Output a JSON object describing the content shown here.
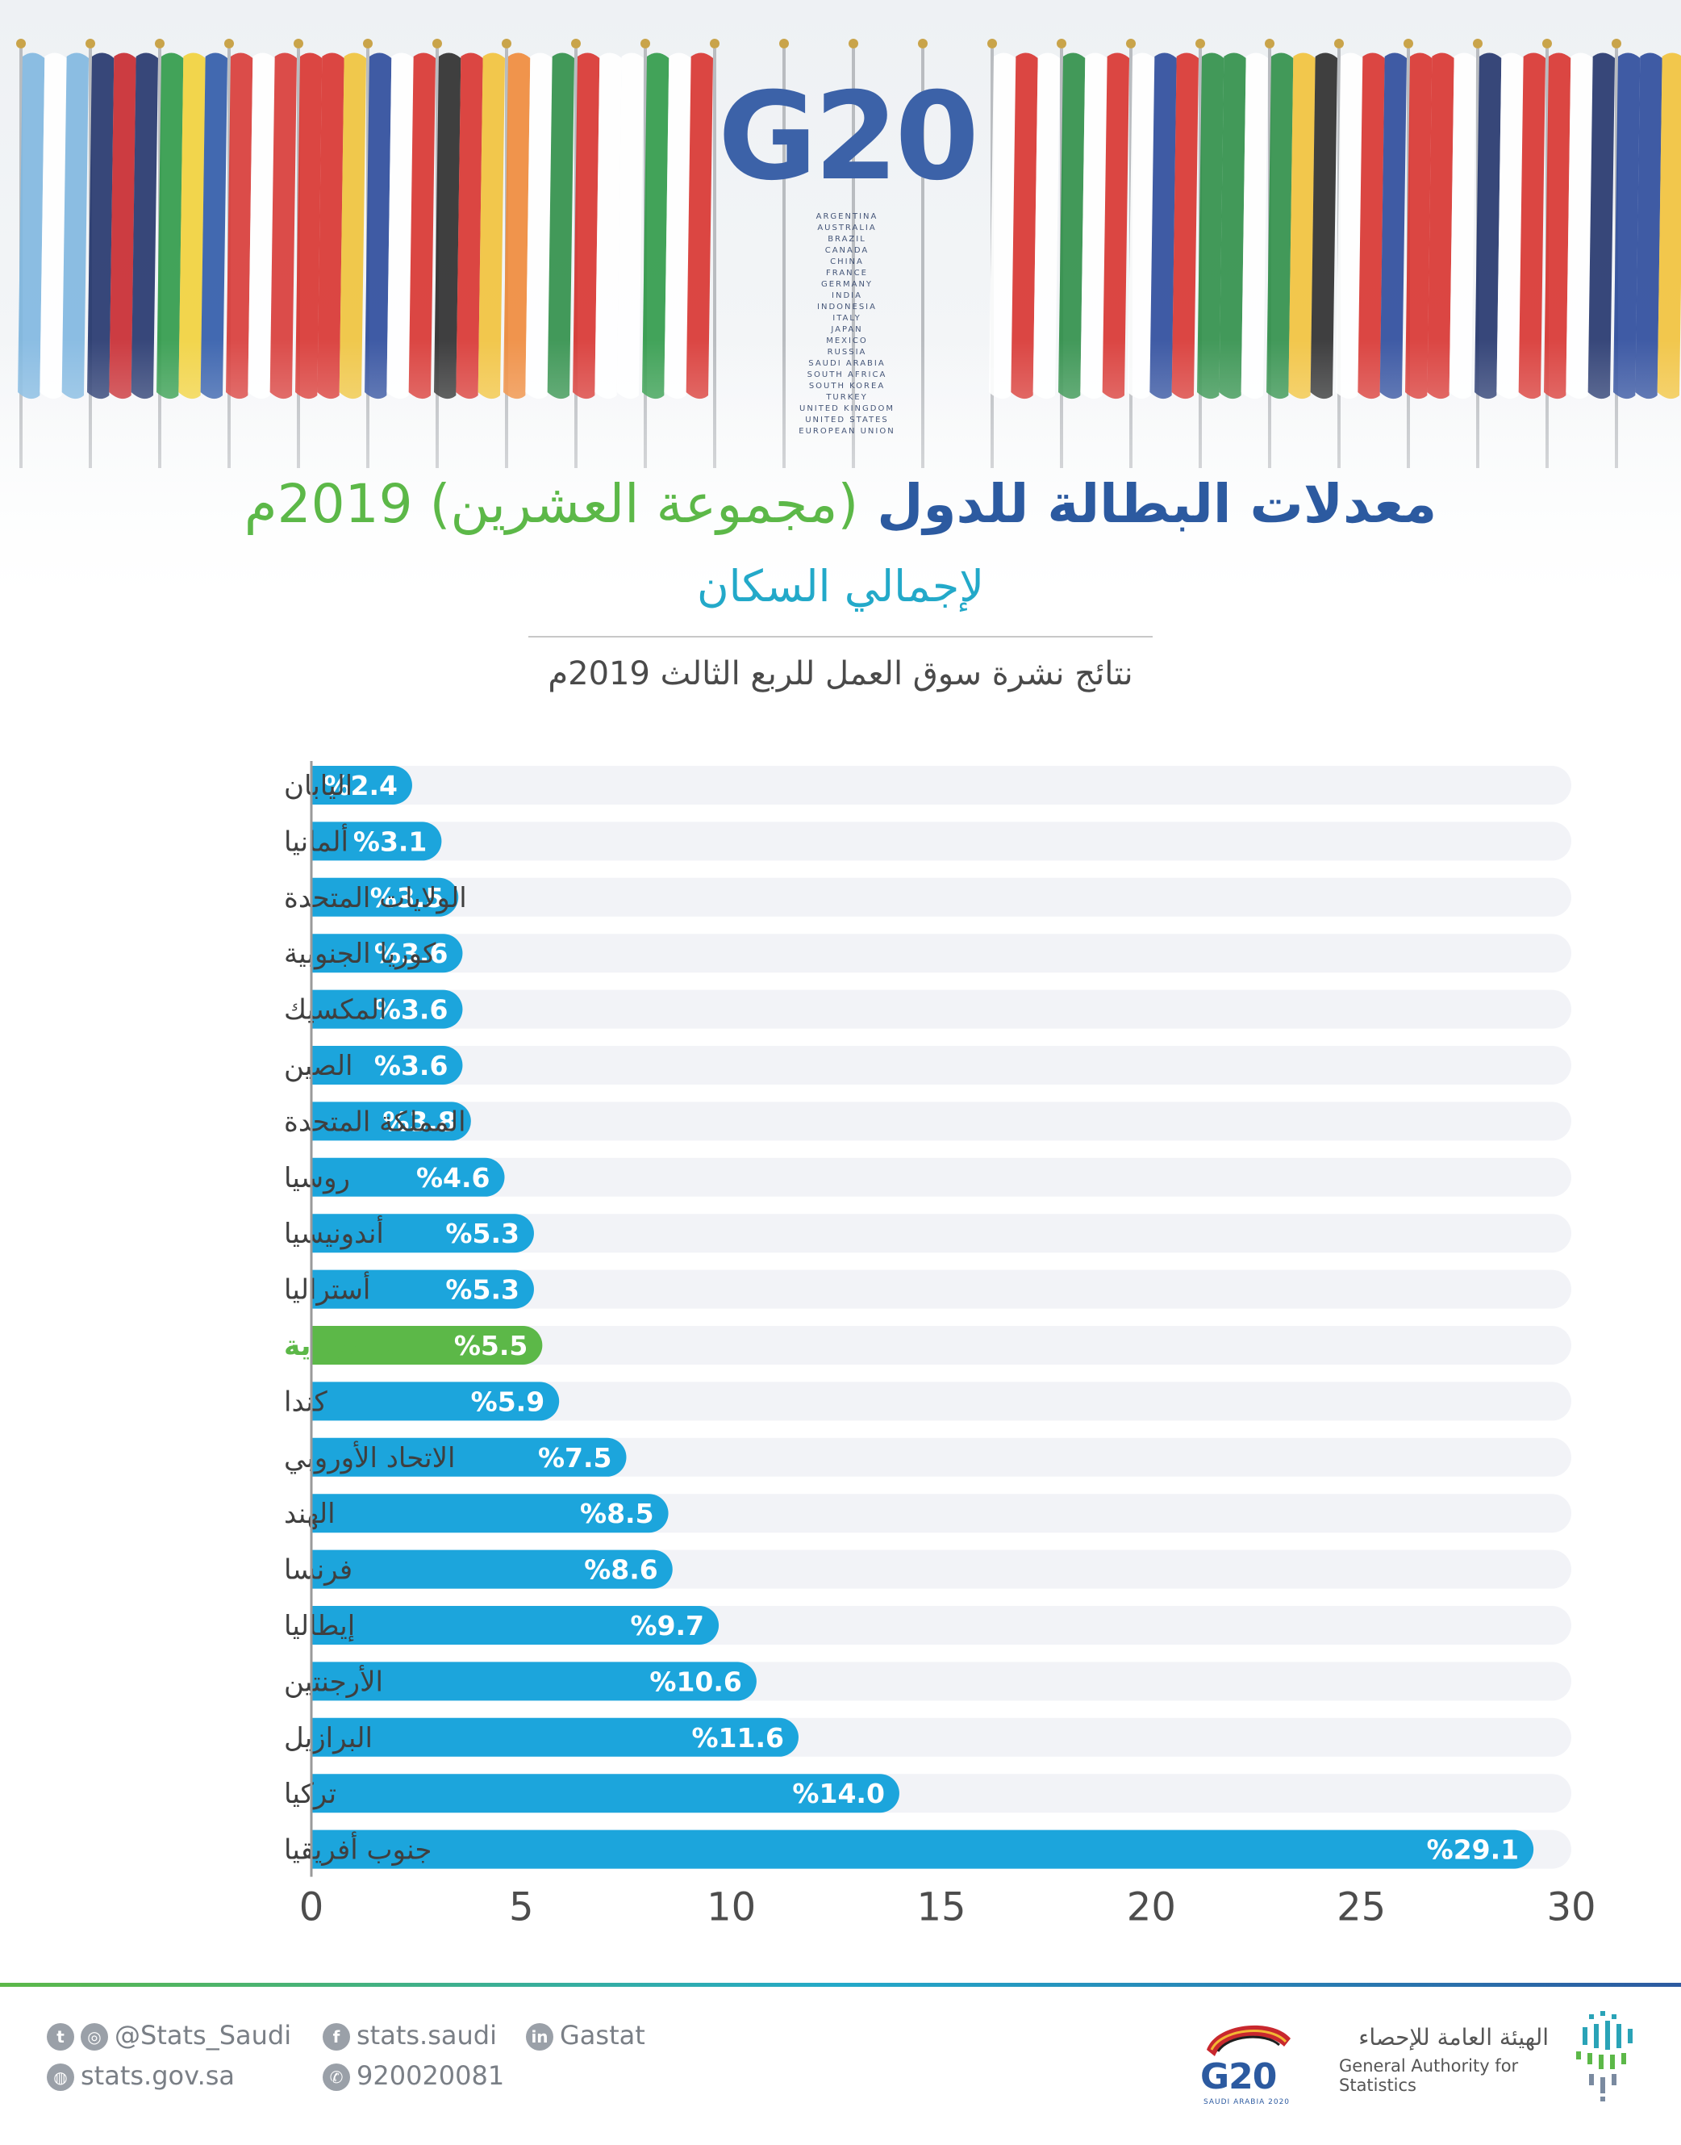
{
  "banner": {
    "logo_text": "G20",
    "countries": [
      "ARGENTINA",
      "AUSTRALIA",
      "BRAZIL",
      "CANADA",
      "CHINA",
      "FRANCE",
      "GERMANY",
      "INDIA",
      "INDONESIA",
      "ITALY",
      "JAPAN",
      "MEXICO",
      "RUSSIA",
      "SAUDI ARABIA",
      "SOUTH AFRICA",
      "SOUTH KOREA",
      "TURKEY",
      "UNITED KINGDOM",
      "UNITED STATES",
      "EUROPEAN UNION"
    ]
  },
  "title": {
    "main_part1": "معدلات البطالة للدول",
    "main_part2": "(مجموعة العشرين) 2019م",
    "subtitle": "لإجمالي السكان",
    "note": "نتائج نشرة سوق العمل للربع الثالث 2019م"
  },
  "colors": {
    "bar": "#1ca5dc",
    "highlight": "#5cb848",
    "track": "#f2f3f7",
    "title_blue": "#2c5aa0",
    "title_green": "#5cb848",
    "subtitle": "#23a9c9"
  },
  "chart_data": {
    "type": "bar",
    "orientation": "horizontal",
    "categories": [
      "اليابان",
      "ألمانيا",
      "الولايات المتحدة",
      "كوريا الجنوبية",
      "المكسيك",
      "الصين",
      "المملكة المتحدة",
      "روسيا",
      "أندونيسيا",
      "أستراليا",
      "السعودية",
      "كندا",
      "الاتحاد الأوروبي",
      "الهند",
      "فرنسا",
      "إيطاليا",
      "الأرجنتين",
      "البرازيل",
      "تركيا",
      "جنوب أفريقيا"
    ],
    "values": [
      2.4,
      3.1,
      3.5,
      3.6,
      3.6,
      3.6,
      3.8,
      4.6,
      5.3,
      5.3,
      5.5,
      5.9,
      7.5,
      8.5,
      8.6,
      9.7,
      10.6,
      11.6,
      14.0,
      29.1
    ],
    "value_labels": [
      "%2.4",
      "%3.1",
      "%3.5",
      "%3.6",
      "%3.6",
      "%3.6",
      "%3.8",
      "%4.6",
      "%5.3",
      "%5.3",
      "%5.5",
      "%5.9",
      "%7.5",
      "%8.5",
      "%8.6",
      "%9.7",
      "%10.6",
      "%11.6",
      "%14.0",
      "%29.1"
    ],
    "highlight": "السعودية",
    "xlim": [
      0,
      30
    ],
    "xticks": [
      0,
      5,
      10,
      15,
      20,
      25,
      30
    ],
    "xlabel": "",
    "ylabel": "",
    "grid": false
  },
  "footer": {
    "twitter": "@Stats_Saudi",
    "website": "stats.gov.sa",
    "facebook": "stats.saudi",
    "phone": "920020081",
    "linkedin": "Gastat",
    "g20_logo": "G20",
    "g20_logo_sub": "SAUDI ARABIA 2020",
    "authority_ar": "الهيئة العامة للإحصاء",
    "authority_en": "General Authority for Statistics"
  }
}
